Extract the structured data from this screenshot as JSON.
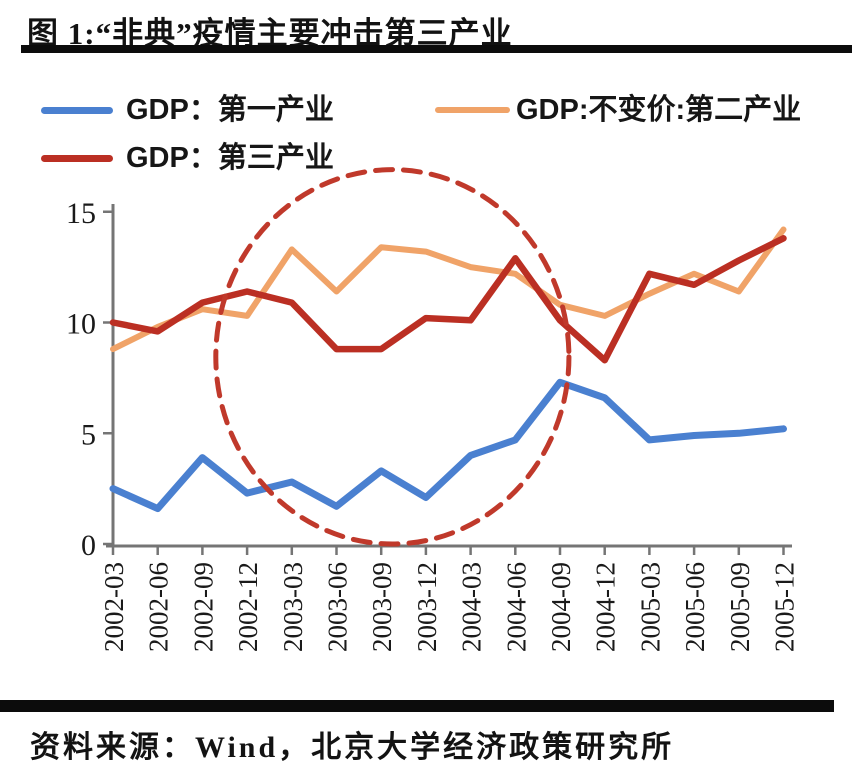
{
  "figure_title": "图 1:“非典”疫情主要冲击第三产业",
  "source_note": "资料来源：Wind，北京大学经济政策研究所",
  "chart_data": {
    "type": "line",
    "categories": [
      "2002-03",
      "2002-06",
      "2002-09",
      "2002-12",
      "2003-03",
      "2003-06",
      "2003-09",
      "2003-12",
      "2004-03",
      "2004-06",
      "2004-09",
      "2004-12",
      "2005-03",
      "2005-06",
      "2005-09",
      "2005-12"
    ],
    "series": [
      {
        "name": "GDP：第一产业",
        "color": "#4a80d0",
        "width": 7,
        "values": [
          2.5,
          1.6,
          3.9,
          2.3,
          2.8,
          1.7,
          3.3,
          2.1,
          4.0,
          4.7,
          7.3,
          6.6,
          4.7,
          4.9,
          5.0,
          5.2
        ]
      },
      {
        "name": "GDP:不变价:第二产业",
        "color": "#f0a368",
        "width": 6,
        "values": [
          8.8,
          9.8,
          10.6,
          10.3,
          13.3,
          11.4,
          13.4,
          13.2,
          12.5,
          12.2,
          10.8,
          10.3,
          11.3,
          12.2,
          11.4,
          14.2
        ]
      },
      {
        "name": "GDP：第三产业",
        "color": "#bb2f23",
        "width": 6.5,
        "values": [
          10.0,
          9.6,
          10.9,
          11.4,
          10.9,
          8.8,
          8.8,
          10.2,
          10.1,
          12.9,
          10.1,
          8.3,
          12.2,
          11.7,
          12.8,
          13.8
        ]
      }
    ],
    "ylim": [
      0,
      15
    ],
    "yticks": [
      0,
      5,
      10,
      15
    ],
    "xlabel": "",
    "ylabel": "",
    "grid": false,
    "legend_position": "top-left",
    "axis_color": "#757575",
    "tick_label_color": "#1a1a1a",
    "annotation": {
      "shape": "dashed-ellipse",
      "purpose": "highlights the 2003 SARS epidemic period",
      "color": "#c0392b",
      "x_from": 2.3,
      "x_to": 10.2,
      "y_from": 0.0,
      "y_to": 16.9
    }
  }
}
